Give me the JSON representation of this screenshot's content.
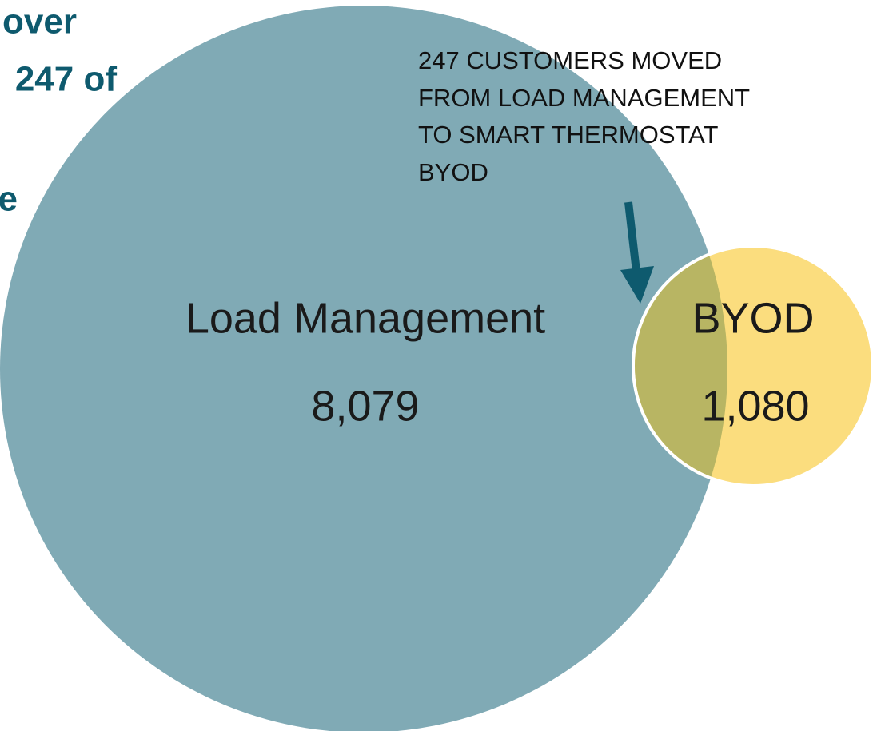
{
  "side_text": [
    "over",
    "247 of",
    "e"
  ],
  "annotation": [
    "247 CUSTOMERS MOVED",
    "FROM LOAD MANAGEMENT",
    "TO SMART THERMOSTAT",
    "BYOD"
  ],
  "sets": [
    {
      "label": "Load Management",
      "count": "8,079"
    },
    {
      "label": "BYOD",
      "count": "1,080"
    }
  ]
}
